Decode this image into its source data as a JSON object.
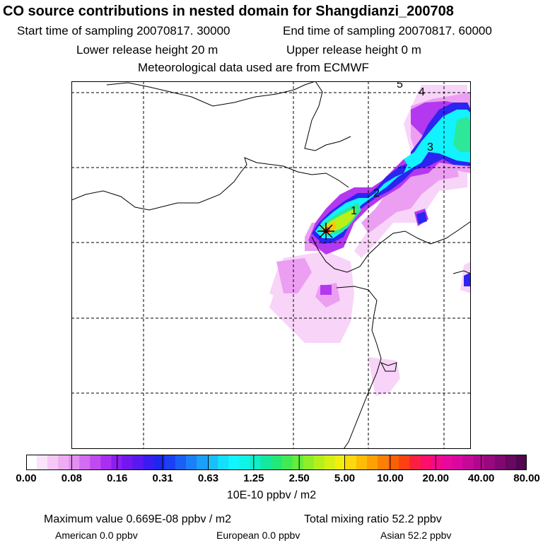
{
  "header": {
    "title": "CO  source contributions in nested domain for Shangdianzi_200708",
    "start_time": "Start time of sampling 20070817. 30000",
    "end_time": "End time of sampling 20070817. 60000",
    "lower_height": "Lower release height   20 m",
    "upper_height": "Upper release height    0 m",
    "met_data": "Meteorological data used are from ECMWF"
  },
  "map": {
    "trajectory_labels": [
      "1",
      "2",
      "3",
      "4",
      "5"
    ],
    "receptor_marker": "asterisk-marker"
  },
  "legend": {
    "tick_labels": [
      "0.00",
      "0.08",
      "0.16",
      "0.31",
      "0.63",
      "1.25",
      "2.50",
      "5.00",
      "10.00",
      "20.00",
      "40.00",
      "80.00"
    ],
    "colors": [
      "#ffffff",
      "#fbe4fb",
      "#f5c8f5",
      "#efacf2",
      "#e38ff0",
      "#d36cf0",
      "#c04af0",
      "#a82ef0",
      "#8d1df0",
      "#7117f0",
      "#5a18f0",
      "#3a1cf0",
      "#1f26f0",
      "#1b40f3",
      "#1a5ff6",
      "#1a7ff8",
      "#1a9ffa",
      "#18bffb",
      "#14dffd",
      "#12f5ff",
      "#10f3e8",
      "#10eec8",
      "#14e8a0",
      "#22e878",
      "#40ea55",
      "#66ec3a",
      "#8eee28",
      "#b4f01c",
      "#d6f014",
      "#f2ee10",
      "#fcd80c",
      "#fcbc08",
      "#fca006",
      "#fc8004",
      "#fc6004",
      "#fc4010",
      "#fc2040",
      "#fc1068",
      "#f40a88",
      "#e8089a",
      "#d808a0",
      "#c40898",
      "#b0088c",
      "#980880",
      "#800870",
      "#680860",
      "#500650"
    ],
    "units": "10E-10 ppbv / m2"
  },
  "summary": {
    "max_value": "Maximum value  0.669E-08 ppbv / m2",
    "total_mixing": "Total mixing ratio       52.2 ppbv",
    "american": "American        0.0 ppbv",
    "european": "European        0.0 ppbv",
    "asian": "Asian       52.2 ppbv"
  }
}
